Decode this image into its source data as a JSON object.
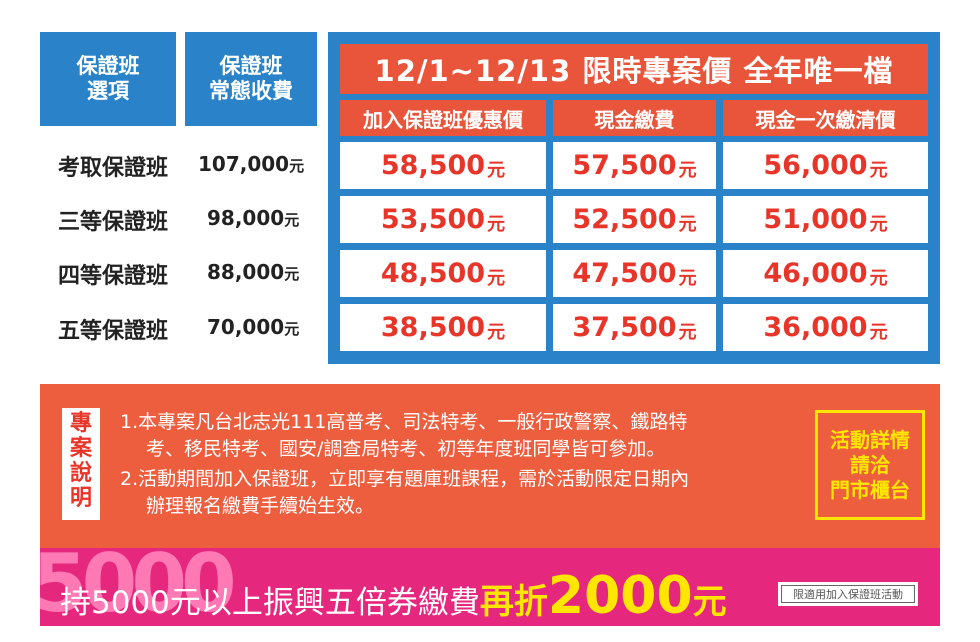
{
  "left_headers": {
    "option": [
      "保證班",
      "選項"
    ],
    "regular_fee": [
      "保證班",
      "常態收費"
    ]
  },
  "plans": [
    {
      "name": "考取保證班",
      "regular": "107,000",
      "member": "58,500",
      "cash": "57,500",
      "cash_full": "56,000"
    },
    {
      "name": "三等保證班",
      "regular": "98,000",
      "member": "53,500",
      "cash": "52,500",
      "cash_full": "51,000"
    },
    {
      "name": "四等保證班",
      "regular": "88,000",
      "member": "48,500",
      "cash": "47,500",
      "cash_full": "46,000"
    },
    {
      "name": "五等保證班",
      "regular": "70,000",
      "member": "38,500",
      "cash": "37,500",
      "cash_full": "36,000"
    }
  ],
  "currency": "元",
  "promo": {
    "title": "12/1~12/13 限時專案價  全年唯一檔",
    "columns": [
      "加入保證班優惠價",
      "現金繳費",
      "現金一次繳清價"
    ]
  },
  "notes": {
    "label": [
      "專",
      "案",
      "說",
      "明"
    ],
    "lines": [
      "1.本專案凡台北志光111高普考、司法特考、一般行政警察、鐵路特",
      "考、移民特考、國安/調查局特考、初等年度班同學皆可參加。",
      "2.活動期間加入保證班，立即享有題庫班課程，需於活動限定日期內",
      "辦理報名繳費手續始生效。"
    ],
    "detail": [
      "活動詳情",
      "請洽",
      "門市櫃台"
    ]
  },
  "voucher_bar": {
    "deco": "5000",
    "text": "持5000元以上振興五倍券繳費",
    "highlight": "再折",
    "amount": "2000",
    "unit": "元",
    "badge": "限適用加入保證班活動"
  },
  "colors": {
    "blue": "#2a82c8",
    "orange_red": "#e8553a",
    "price_red": "#e8352a",
    "pink": "#e6277e",
    "yellow": "#ffe600"
  }
}
